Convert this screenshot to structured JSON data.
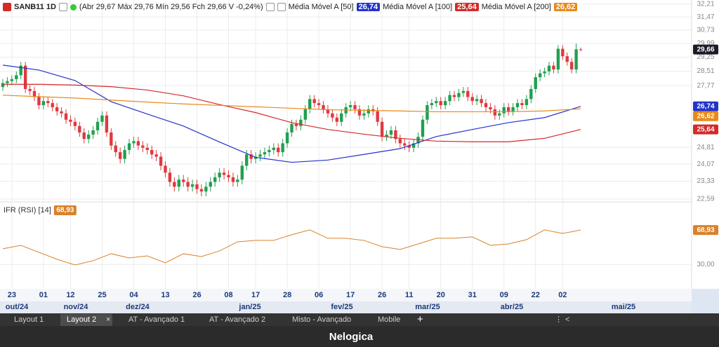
{
  "header": {
    "symbol": "SANB11 1D",
    "quote": "(Abr 29,67 Máx 29,76 Mín 29,56 Fch 29,66 V -0,24%)"
  },
  "chart_data": [
    {
      "type": "candlestick",
      "yscale": "log",
      "grid": true,
      "up_color": "#20a050",
      "down_color": "#e0393e",
      "ylim": [
        22.47,
        32.46
      ],
      "yticks": [
        {
          "value": 32.21,
          "label": "32,21"
        },
        {
          "value": 31.47,
          "label": "31,47"
        },
        {
          "value": 30.73,
          "label": "30,73"
        },
        {
          "value": 29.99,
          "label": "29,99"
        },
        {
          "value": 29.25,
          "label": "29,25"
        },
        {
          "value": 28.51,
          "label": "28,51"
        },
        {
          "value": 27.77,
          "label": "27,77"
        },
        {
          "value": 24.81,
          "label": "24,81"
        },
        {
          "value": 24.07,
          "label": "24,07"
        },
        {
          "value": 23.33,
          "label": "23,33"
        },
        {
          "value": 22.59,
          "label": "22,59"
        }
      ],
      "last_label": "29,66",
      "categories": [
        null,
        null,
        "23",
        null,
        null,
        null,
        null,
        null,
        null,
        "01",
        null,
        null,
        null,
        null,
        null,
        "12",
        null,
        null,
        null,
        null,
        null,
        null,
        "25",
        null,
        null,
        null,
        null,
        null,
        null,
        "04",
        null,
        null,
        null,
        null,
        null,
        null,
        "13",
        null,
        null,
        null,
        null,
        null,
        null,
        "26",
        null,
        null,
        null,
        null,
        null,
        null,
        "08",
        null,
        null,
        null,
        null,
        null,
        "17",
        null,
        null,
        null,
        null,
        null,
        null,
        "28",
        null,
        null,
        null,
        null,
        null,
        null,
        "06",
        null,
        null,
        null,
        null,
        null,
        null,
        "17",
        null,
        null,
        null,
        null,
        null,
        null,
        "26",
        null,
        null,
        null,
        null,
        null,
        "11",
        null,
        null,
        null,
        null,
        null,
        null,
        "20",
        null,
        null,
        null,
        null,
        null,
        null,
        "31",
        null,
        null,
        null,
        null,
        null,
        null,
        "09",
        null,
        null,
        null,
        null,
        null,
        null,
        "22",
        null,
        null,
        null,
        null,
        null,
        "02",
        null,
        null,
        null,
        null
      ],
      "months": [
        "out/24",
        "nov/24",
        "dez/24",
        "jan/25",
        "fev/25",
        "mar/25",
        "abr/25",
        "mai/25"
      ],
      "open": [
        27.7,
        27.9,
        28.0,
        28.1,
        28.3,
        28.8,
        27.6,
        27.5,
        27.2,
        26.8,
        27.0,
        26.9,
        26.7,
        26.5,
        26.4,
        26.1,
        26.0,
        25.8,
        25.5,
        25.2,
        25.4,
        25.6,
        26.0,
        26.3,
        25.5,
        24.9,
        24.6,
        24.3,
        24.7,
        25.0,
        25.1,
        24.9,
        24.8,
        24.7,
        24.5,
        24.4,
        24.0,
        23.7,
        23.3,
        23.1,
        23.4,
        23.3,
        23.1,
        23.2,
        23.0,
        22.9,
        23.1,
        23.3,
        23.5,
        23.7,
        23.6,
        23.5,
        23.3,
        23.4,
        24.0,
        24.5,
        24.3,
        24.4,
        24.5,
        24.6,
        24.7,
        24.8,
        24.6,
        25.0,
        25.5,
        25.9,
        25.8,
        26.1,
        26.6,
        27.1,
        26.9,
        26.8,
        26.6,
        26.4,
        26.2,
        26.0,
        26.4,
        26.7,
        26.8,
        26.6,
        26.3,
        26.4,
        26.6,
        26.5,
        26.0,
        25.3,
        25.4,
        25.6,
        25.2,
        25.0,
        24.9,
        24.8,
        25.0,
        25.3,
        26.1,
        26.8,
        26.9,
        27.0,
        26.8,
        27.0,
        27.3,
        27.2,
        27.4,
        27.5,
        27.2,
        27.0,
        27.1,
        26.9,
        26.7,
        26.6,
        26.3,
        26.4,
        26.7,
        26.5,
        26.7,
        26.9,
        26.8,
        27.1,
        27.6,
        28.2,
        28.4,
        28.5,
        28.8,
        28.6,
        29.7,
        29.3,
        29.0,
        28.6,
        29.67
      ],
      "high": [
        28.1,
        28.2,
        28.3,
        28.5,
        29.0,
        29.0,
        27.8,
        27.7,
        27.4,
        27.2,
        27.2,
        27.1,
        26.9,
        26.7,
        26.6,
        26.3,
        26.2,
        26.0,
        25.7,
        25.6,
        25.8,
        26.2,
        26.5,
        26.5,
        25.7,
        25.1,
        24.8,
        24.9,
        25.2,
        25.3,
        25.3,
        25.1,
        25.0,
        24.9,
        24.7,
        24.6,
        24.2,
        23.9,
        23.5,
        23.6,
        23.6,
        23.5,
        23.4,
        23.4,
        23.2,
        23.3,
        23.5,
        23.7,
        23.9,
        23.9,
        23.8,
        23.7,
        23.6,
        24.2,
        24.7,
        24.7,
        24.6,
        24.7,
        24.8,
        24.9,
        25.0,
        25.0,
        25.2,
        25.7,
        26.1,
        26.1,
        26.3,
        26.8,
        27.3,
        27.3,
        27.1,
        27.0,
        26.8,
        26.6,
        26.4,
        26.6,
        26.9,
        27.0,
        27.0,
        26.8,
        26.6,
        26.8,
        26.8,
        26.7,
        26.2,
        25.6,
        25.8,
        25.8,
        25.4,
        25.2,
        25.1,
        25.2,
        25.5,
        26.3,
        27.0,
        27.1,
        27.2,
        27.2,
        27.2,
        27.5,
        27.5,
        27.6,
        27.7,
        27.7,
        27.4,
        27.3,
        27.3,
        27.1,
        26.9,
        26.8,
        26.6,
        26.9,
        26.9,
        26.9,
        27.1,
        27.1,
        27.3,
        27.8,
        28.4,
        28.6,
        28.7,
        29.0,
        29.0,
        29.9,
        29.9,
        29.5,
        29.2,
        29.99,
        29.76
      ],
      "low": [
        27.5,
        27.7,
        27.8,
        27.9,
        28.1,
        27.4,
        27.3,
        27.0,
        26.6,
        26.6,
        26.7,
        26.5,
        26.3,
        26.2,
        25.9,
        25.8,
        25.6,
        25.3,
        25.0,
        25.0,
        25.2,
        25.4,
        25.8,
        25.3,
        24.7,
        24.4,
        24.1,
        24.1,
        24.5,
        24.8,
        24.7,
        24.6,
        24.5,
        24.3,
        24.2,
        23.8,
        23.5,
        23.1,
        22.9,
        22.9,
        23.1,
        22.9,
        22.9,
        22.8,
        22.7,
        22.7,
        22.9,
        23.1,
        23.3,
        23.4,
        23.3,
        23.1,
        23.1,
        23.2,
        23.8,
        24.1,
        24.1,
        24.2,
        24.3,
        24.4,
        24.5,
        24.4,
        24.4,
        24.8,
        25.3,
        25.6,
        25.6,
        25.9,
        26.4,
        26.7,
        26.6,
        26.4,
        26.2,
        26.0,
        25.8,
        25.8,
        26.2,
        26.5,
        26.4,
        26.1,
        26.1,
        26.2,
        26.3,
        25.8,
        25.1,
        25.1,
        25.2,
        25.0,
        24.8,
        24.7,
        24.6,
        24.6,
        24.8,
        25.1,
        25.9,
        26.6,
        26.7,
        26.6,
        26.6,
        26.8,
        27.0,
        27.0,
        27.2,
        27.0,
        26.8,
        26.8,
        26.7,
        26.5,
        26.4,
        26.1,
        26.1,
        26.2,
        26.3,
        26.3,
        26.5,
        26.6,
        26.6,
        26.9,
        27.4,
        28.0,
        28.2,
        28.3,
        28.4,
        28.4,
        29.1,
        28.8,
        28.4,
        28.4,
        29.56
      ],
      "close": [
        27.9,
        28.0,
        28.1,
        28.3,
        28.8,
        27.6,
        27.5,
        27.2,
        26.8,
        27.0,
        26.9,
        26.7,
        26.5,
        26.4,
        26.1,
        26.0,
        25.8,
        25.5,
        25.2,
        25.4,
        25.6,
        26.0,
        26.3,
        25.5,
        24.9,
        24.6,
        24.3,
        24.7,
        25.0,
        25.1,
        24.9,
        24.8,
        24.7,
        24.5,
        24.4,
        24.0,
        23.7,
        23.3,
        23.1,
        23.4,
        23.3,
        23.1,
        23.2,
        23.0,
        22.9,
        23.1,
        23.3,
        23.5,
        23.7,
        23.6,
        23.5,
        23.3,
        23.4,
        24.0,
        24.5,
        24.3,
        24.4,
        24.5,
        24.6,
        24.7,
        24.8,
        24.6,
        25.0,
        25.5,
        25.9,
        25.8,
        26.1,
        26.6,
        27.1,
        26.9,
        26.8,
        26.6,
        26.4,
        26.2,
        26.0,
        26.4,
        26.7,
        26.8,
        26.6,
        26.3,
        26.4,
        26.6,
        26.5,
        26.0,
        25.3,
        25.4,
        25.6,
        25.2,
        25.0,
        24.9,
        24.8,
        25.0,
        25.3,
        26.1,
        26.8,
        26.9,
        27.0,
        26.8,
        27.0,
        27.3,
        27.2,
        27.4,
        27.5,
        27.2,
        27.0,
        27.1,
        26.9,
        26.7,
        26.6,
        26.3,
        26.4,
        26.7,
        26.5,
        26.7,
        26.9,
        26.8,
        27.1,
        27.6,
        28.2,
        28.4,
        28.5,
        28.8,
        28.6,
        29.7,
        29.3,
        29.0,
        28.6,
        29.67,
        29.66
      ],
      "overlays": {
        "x": [
          0,
          8,
          16,
          24,
          32,
          40,
          48,
          56,
          64,
          72,
          80,
          88,
          96,
          104,
          112,
          120,
          128
        ],
        "series": [
          {
            "name": "Média Móvel A [50]",
            "color": "#2233cc",
            "last_label": "26,74",
            "values": [
              28.83,
              28.57,
              28.03,
              26.97,
              26.37,
              25.8,
              25.06,
              24.37,
              24.15,
              24.25,
              24.5,
              24.76,
              25.31,
              25.64,
              25.96,
              26.2,
              26.74
            ]
          },
          {
            "name": "Média Móvel A [100]",
            "color": "#d42a2a",
            "last_label": "25,64",
            "values": [
              27.84,
              27.84,
              27.8,
              27.72,
              27.55,
              27.26,
              26.83,
              26.44,
              25.96,
              25.64,
              25.42,
              25.23,
              25.1,
              25.07,
              25.07,
              25.23,
              25.64
            ]
          },
          {
            "name": "Média Móvel A [200]",
            "color": "#e8891a",
            "last_label": "26,62",
            "values": [
              27.29,
              27.22,
              27.15,
              27.05,
              26.95,
              26.86,
              26.79,
              26.72,
              26.65,
              26.58,
              26.55,
              26.52,
              26.48,
              26.48,
              26.48,
              26.52,
              26.62
            ]
          }
        ]
      }
    },
    {
      "type": "line",
      "title": "IFR (RSI) [14]",
      "color": "#d9822b",
      "last_label": "68,93",
      "ylim": [
        0,
        100
      ],
      "yticks": [
        {
          "value": 30,
          "label": "30,00"
        }
      ],
      "x": [
        0,
        4,
        8,
        12,
        16,
        20,
        24,
        28,
        32,
        36,
        40,
        44,
        48,
        52,
        56,
        60,
        64,
        68,
        72,
        76,
        80,
        84,
        88,
        92,
        96,
        100,
        104,
        108,
        112,
        116,
        120,
        124,
        128
      ],
      "values": [
        47.7,
        51.6,
        43.7,
        35.8,
        29.4,
        34.2,
        42.1,
        37.3,
        39.7,
        31.8,
        42.1,
        38.9,
        45.3,
        55.6,
        57.2,
        57.2,
        63.6,
        69.1,
        59.6,
        59.6,
        57.2,
        50.1,
        46.9,
        53.2,
        59.6,
        59.6,
        61.2,
        51.6,
        53.2,
        58.0,
        69.1,
        65.1,
        68.93
      ]
    }
  ],
  "tabs": [
    "Layout 1",
    "Layout 2",
    "AT - Avançado 1",
    "AT - Avançado 2",
    "Misto - Avançado",
    "Mobile"
  ],
  "footer": {
    "brand": "Nelogica"
  }
}
